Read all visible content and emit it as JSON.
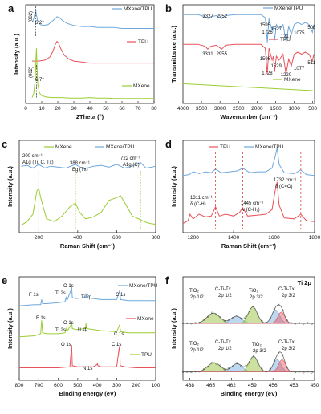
{
  "colors": {
    "mxene": "#9acd32",
    "tpu": "#e8525a",
    "mxene_tpu": "#6fa8dc",
    "blue_ann": "#2e75b6",
    "red_ann": "#e03c3c",
    "green_ann": "#8dbb2c"
  },
  "chart_data": [
    {
      "id": "a",
      "type": "line",
      "panel_label": "a",
      "xlabel": "2Theta (°)",
      "ylabel": "Intensity (a.u.)",
      "xlim": [
        0,
        80
      ],
      "xticks": [
        "0",
        "10",
        "20",
        "30",
        "40",
        "50",
        "60",
        "70",
        "80"
      ],
      "legend": [
        "MXene/TPU",
        "TPU",
        "MXene"
      ],
      "annotations": {
        "peak_label_1": "(002)",
        "angle_1": "6.2°",
        "peak_label_2": "(002)",
        "angle_2": "6.7°"
      },
      "series": [
        {
          "name": "MXene/TPU",
          "x": [
            4,
            5,
            6,
            6.2,
            6.6,
            7.5,
            9,
            11,
            14,
            17,
            19.5,
            21,
            23,
            26,
            30,
            35,
            40,
            45,
            50,
            55,
            60,
            65,
            70,
            75,
            80
          ],
          "y": [
            0.82,
            0.86,
            0.93,
            0.96,
            0.9,
            0.84,
            0.8,
            0.79,
            0.8,
            0.84,
            0.88,
            0.87,
            0.84,
            0.81,
            0.79,
            0.78,
            0.78,
            0.77,
            0.77,
            0.77,
            0.76,
            0.76,
            0.76,
            0.76,
            0.76
          ]
        },
        {
          "name": "TPU",
          "x": [
            4,
            8,
            12,
            15,
            17,
            18.5,
            19.5,
            20.5,
            22,
            24,
            27,
            30,
            35,
            40,
            45,
            50,
            55,
            60,
            65,
            70,
            75,
            80
          ],
          "y": [
            0.43,
            0.43,
            0.44,
            0.47,
            0.53,
            0.6,
            0.63,
            0.61,
            0.55,
            0.49,
            0.45,
            0.43,
            0.42,
            0.41,
            0.41,
            0.41,
            0.41,
            0.41,
            0.41,
            0.41,
            0.41,
            0.41
          ]
        },
        {
          "name": "MXene",
          "x": [
            4,
            5,
            6,
            6.4,
            6.7,
            7,
            7.5,
            8.5,
            10,
            13,
            17,
            22,
            28,
            35,
            40,
            45,
            50,
            55,
            60,
            65,
            70,
            75,
            80
          ],
          "y": [
            0.06,
            0.1,
            0.25,
            0.45,
            0.56,
            0.42,
            0.2,
            0.11,
            0.08,
            0.065,
            0.06,
            0.06,
            0.055,
            0.055,
            0.06,
            0.055,
            0.055,
            0.05,
            0.05,
            0.05,
            0.05,
            0.05,
            0.05
          ]
        }
      ]
    },
    {
      "id": "b",
      "type": "line",
      "panel_label": "b",
      "xlabel": "Wavenumber (cm⁻¹)",
      "ylabel": "Transmittance (a.u.)",
      "xlim": [
        4000,
        450
      ],
      "xticks": [
        "4000",
        "3500",
        "3000",
        "2500",
        "2000",
        "1500",
        "1000",
        "500"
      ],
      "legend": [
        "MXene/TPU",
        "TPU",
        "MXene"
      ],
      "annotations": {
        "top_3327": "3327",
        "top_2952": "2952",
        "top_1595": "1595",
        "top_1726": "1726",
        "top_1527": "1527",
        "top_1217": "1217",
        "top_1075": "1075",
        "top_508": "508",
        "mid_3331": "3331",
        "mid_2955": "2955",
        "mid_1596": "1596",
        "mid_1728": "1728",
        "mid_1529": "1529",
        "mid_1220": "1220",
        "mid_1077": "1077",
        "mid_511": "511"
      },
      "series": [
        {
          "name": "MXene/TPU",
          "x": [
            4000,
            3600,
            3400,
            3327,
            3250,
            3100,
            2952,
            2850,
            2600,
            2200,
            1900,
            1780,
            1726,
            1680,
            1595,
            1560,
            1527,
            1480,
            1410,
            1300,
            1217,
            1150,
            1075,
            1000,
            900,
            800,
            700,
            600,
            508,
            470
          ],
          "y": [
            0.9,
            0.9,
            0.88,
            0.86,
            0.88,
            0.89,
            0.86,
            0.89,
            0.9,
            0.9,
            0.9,
            0.87,
            0.62,
            0.86,
            0.74,
            0.78,
            0.64,
            0.8,
            0.76,
            0.8,
            0.62,
            0.78,
            0.7,
            0.8,
            0.82,
            0.8,
            0.82,
            0.8,
            0.72,
            0.8
          ]
        },
        {
          "name": "TPU",
          "x": [
            4000,
            3600,
            3400,
            3331,
            3250,
            3100,
            2955,
            2850,
            2600,
            2200,
            1900,
            1780,
            1728,
            1680,
            1596,
            1560,
            1529,
            1480,
            1410,
            1300,
            1220,
            1150,
            1077,
            1000,
            900,
            800,
            700,
            600,
            511,
            470
          ],
          "y": [
            0.6,
            0.6,
            0.58,
            0.55,
            0.58,
            0.59,
            0.55,
            0.59,
            0.6,
            0.6,
            0.6,
            0.56,
            0.3,
            0.56,
            0.44,
            0.48,
            0.32,
            0.48,
            0.44,
            0.5,
            0.3,
            0.45,
            0.38,
            0.5,
            0.52,
            0.5,
            0.52,
            0.5,
            0.43,
            0.5
          ]
        },
        {
          "name": "MXene",
          "x": [
            4000,
            3500,
            3000,
            2500,
            2000,
            1500,
            1000,
            500
          ],
          "y": [
            0.2,
            0.19,
            0.18,
            0.17,
            0.16,
            0.15,
            0.14,
            0.13
          ]
        }
      ]
    },
    {
      "id": "c",
      "type": "line",
      "panel_label": "c",
      "xlabel": "Raman Shift (cm⁻¹)",
      "ylabel": "Intensity (a.u.)",
      "xlim": [
        100,
        800
      ],
      "xticks": [
        "200",
        "400",
        "600",
        "800"
      ],
      "legend": [
        "MXene",
        "MXene/TPU"
      ],
      "annotations": {
        "a1": "200 cm⁻¹",
        "a2": "A1g (Ti, C, Tx)",
        "b1": "388 cm⁻¹",
        "b2": "Eg (Tx)",
        "c1": "722 cm⁻¹",
        "c2": "A1g (C)"
      },
      "series": [
        {
          "name": "MXene/TPU",
          "x": [
            110,
            140,
            170,
            200,
            230,
            260,
            300,
            340,
            388,
            430,
            480,
            520,
            560,
            600,
            640,
            680,
            722,
            750,
            780,
            800
          ],
          "y": [
            0.72,
            0.73,
            0.7,
            0.74,
            0.7,
            0.72,
            0.71,
            0.7,
            0.74,
            0.69,
            0.72,
            0.73,
            0.71,
            0.74,
            0.7,
            0.72,
            0.76,
            0.7,
            0.71,
            0.72
          ]
        },
        {
          "name": "MXene",
          "x": [
            110,
            140,
            170,
            190,
            200,
            210,
            240,
            280,
            320,
            360,
            388,
            410,
            440,
            480,
            520,
            560,
            600,
            620,
            640,
            680,
            722,
            740,
            770,
            800
          ],
          "y": [
            0.08,
            0.12,
            0.2,
            0.45,
            0.48,
            0.38,
            0.15,
            0.12,
            0.18,
            0.28,
            0.32,
            0.22,
            0.15,
            0.17,
            0.22,
            0.35,
            0.38,
            0.4,
            0.33,
            0.18,
            0.14,
            0.12,
            0.1,
            0.09
          ]
        }
      ]
    },
    {
      "id": "d",
      "type": "line",
      "panel_label": "d",
      "xlabel": "Raman Shift (cm⁻¹)",
      "ylabel": "Intensity (a.u.)",
      "xlim": [
        1150,
        1800
      ],
      "xticks": [
        "1200",
        "1400",
        "1600",
        "1800"
      ],
      "legend": [
        "TPU",
        "MXene/TPU"
      ],
      "annotations": {
        "p1a": "1311 cm⁻¹",
        "p1b": "δ (C-H)",
        "p2a": "1445 cm⁻¹",
        "p2b": "ν (C-H₂)",
        "p3a": "1732 cm⁻¹",
        "p3b": "δ (C=O)"
      },
      "series": [
        {
          "name": "MXene/TPU",
          "x": [
            1150,
            1180,
            1200,
            1230,
            1260,
            1290,
            1311,
            1340,
            1380,
            1420,
            1445,
            1480,
            1520,
            1560,
            1590,
            1605,
            1615,
            1625,
            1650,
            1700,
            1732,
            1760,
            1800
          ],
          "y": [
            0.62,
            0.63,
            0.66,
            0.64,
            0.66,
            0.65,
            0.69,
            0.65,
            0.66,
            0.67,
            0.7,
            0.65,
            0.66,
            0.66,
            0.7,
            0.82,
            0.92,
            0.74,
            0.65,
            0.64,
            0.68,
            0.63,
            0.62
          ]
        },
        {
          "name": "TPU",
          "x": [
            1150,
            1175,
            1185,
            1200,
            1230,
            1260,
            1290,
            1311,
            1330,
            1360,
            1400,
            1430,
            1445,
            1470,
            1520,
            1560,
            1590,
            1605,
            1615,
            1625,
            1650,
            1700,
            1732,
            1760,
            1800
          ],
          "y": [
            0.1,
            0.13,
            0.2,
            0.15,
            0.2,
            0.17,
            0.18,
            0.28,
            0.18,
            0.2,
            0.18,
            0.22,
            0.27,
            0.18,
            0.19,
            0.2,
            0.25,
            0.45,
            0.55,
            0.3,
            0.16,
            0.15,
            0.2,
            0.13,
            0.12
          ]
        }
      ]
    },
    {
      "id": "e",
      "type": "line",
      "panel_label": "e",
      "xlabel": "Binding energy (eV)",
      "ylabel": "Intensity (a.u.)",
      "xlim": [
        800,
        100
      ],
      "xticks": [
        "800",
        "700",
        "600",
        "500",
        "400",
        "300",
        "200",
        "100"
      ],
      "legend": [
        "MXene/TPU",
        "MXene",
        "TPU"
      ],
      "annotations": {
        "t_f1s": "F 1s",
        "t_o1s": "O 1s",
        "t_ti2s": "Ti 2s",
        "t_ti2p": "Ti 2p",
        "t_c1s": "C 1s",
        "m_f1s": "F 1s",
        "m_o1s": "O 1s",
        "m_ti2s": "Ti 2s",
        "m_ti2p": "Ti 2p",
        "m_c1s": "C 1s",
        "b_o1s": "O 1s",
        "b_n1s": "N 1s",
        "b_c1s": "C 1s"
      },
      "series": [
        {
          "name": "MXene/TPU",
          "x": [
            800,
            720,
            690,
            685,
            680,
            660,
            600,
            565,
            560,
            555,
            533,
            531,
            528,
            510,
            460,
            458,
            455,
            420,
            380,
            300,
            286,
            284,
            280,
            240,
            180,
            100
          ],
          "y": [
            0.72,
            0.73,
            0.73,
            0.78,
            0.74,
            0.74,
            0.75,
            0.76,
            0.8,
            0.77,
            0.88,
            0.9,
            0.8,
            0.79,
            0.8,
            0.84,
            0.8,
            0.79,
            0.78,
            0.78,
            0.86,
            0.84,
            0.78,
            0.77,
            0.77,
            0.77
          ]
        },
        {
          "name": "MXene",
          "x": [
            800,
            720,
            690,
            685,
            680,
            660,
            600,
            565,
            560,
            555,
            533,
            531,
            528,
            510,
            460,
            458,
            455,
            420,
            380,
            300,
            286,
            284,
            280,
            240,
            180,
            100
          ],
          "y": [
            0.42,
            0.43,
            0.45,
            0.58,
            0.46,
            0.45,
            0.45,
            0.46,
            0.5,
            0.47,
            0.54,
            0.56,
            0.5,
            0.49,
            0.5,
            0.55,
            0.5,
            0.49,
            0.48,
            0.47,
            0.53,
            0.52,
            0.47,
            0.46,
            0.46,
            0.46
          ]
        },
        {
          "name": "TPU",
          "x": [
            800,
            700,
            600,
            540,
            533,
            531,
            528,
            500,
            420,
            402,
            399,
            396,
            380,
            300,
            288,
            285,
            282,
            260,
            200,
            100
          ],
          "y": [
            0.12,
            0.12,
            0.12,
            0.13,
            0.3,
            0.34,
            0.14,
            0.13,
            0.13,
            0.15,
            0.16,
            0.14,
            0.13,
            0.13,
            0.3,
            0.33,
            0.14,
            0.13,
            0.12,
            0.12
          ]
        }
      ]
    },
    {
      "id": "f",
      "type": "area",
      "panel_label": "f",
      "title": "Ti 2p",
      "xlabel": "Binding energy (eV)",
      "ylabel": "Intensity (a.u.)",
      "xlim": [
        469,
        450
      ],
      "xticks": [
        "468",
        "465",
        "462",
        "459",
        "456",
        "453",
        "450"
      ],
      "annotations": {
        "u_tio2_a": "TiO₂",
        "u_tio2_a_sub": "2p 1/2",
        "u_cti_a": "C-Ti-Tx",
        "u_cti_a_sub": "2p 1/2",
        "u_tio2_b": "TiO₂",
        "u_tio2_b_sub": "2p 3/2",
        "u_cti_b": "C-Ti-Tx",
        "u_cti_b_sub": "2p 3/2",
        "l_tio2_a": "TiO₂",
        "l_tio2_a_sub": "2p 1/2",
        "l_cti_a": "C-Ti-Tx",
        "l_cti_a_sub": "2p 1/2",
        "l_tio2_b": "TiO₂",
        "l_tio2_b_sub": "2p 3/2",
        "l_cti_b": "C-Ti-Tx",
        "l_cti_b_sub": "2p 3/2"
      },
      "upper_peaks": [
        {
          "center": 464.6,
          "height": 0.1,
          "width": 1.3,
          "color": "#8dbb2c"
        },
        {
          "center": 461.3,
          "height": 0.07,
          "width": 1.1,
          "color": "#6fa8dc"
        },
        {
          "center": 458.9,
          "height": 0.16,
          "width": 0.9,
          "color": "#8dbb2c"
        },
        {
          "center": 455.6,
          "height": 0.13,
          "width": 0.8,
          "color": "#6fa8dc"
        },
        {
          "center": 454.8,
          "height": 0.11,
          "width": 0.7,
          "color": "#e8525a"
        }
      ],
      "lower_peaks": [
        {
          "center": 464.5,
          "height": 0.09,
          "width": 1.3,
          "color": "#8dbb2c"
        },
        {
          "center": 461.2,
          "height": 0.08,
          "width": 1.1,
          "color": "#6fa8dc"
        },
        {
          "center": 458.8,
          "height": 0.15,
          "width": 0.9,
          "color": "#8dbb2c"
        },
        {
          "center": 455.4,
          "height": 0.12,
          "width": 0.8,
          "color": "#6fa8dc"
        },
        {
          "center": 454.7,
          "height": 0.12,
          "width": 0.7,
          "color": "#e8525a"
        }
      ]
    }
  ]
}
